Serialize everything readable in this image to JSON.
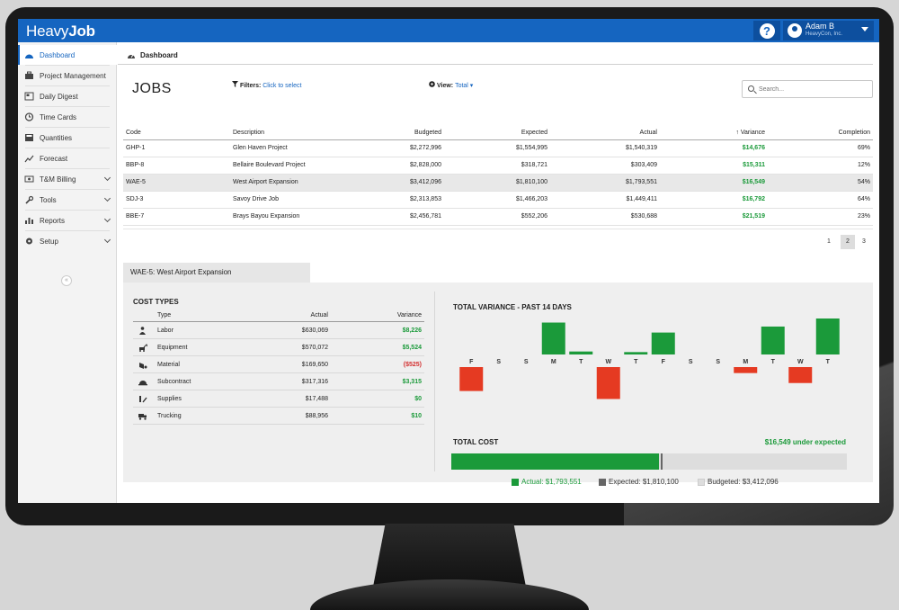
{
  "app": {
    "logo_light": "Heavy",
    "logo_bold": "Job",
    "help_label": "?",
    "user_name": "Adam B",
    "user_company": "HeavyCon, Inc."
  },
  "sidebar": {
    "items": [
      {
        "label": "Dashboard",
        "icon": "dashboard-icon",
        "active": true
      },
      {
        "label": "Project Management",
        "icon": "briefcase-icon"
      },
      {
        "label": "Daily Digest",
        "icon": "newspaper-icon"
      },
      {
        "label": "Time Cards",
        "icon": "clock-icon"
      },
      {
        "label": "Quantities",
        "icon": "calculator-icon"
      },
      {
        "label": "Forecast",
        "icon": "trend-line-icon"
      },
      {
        "label": "T&M Billing",
        "icon": "billing-icon",
        "expandable": true
      },
      {
        "label": "Tools",
        "icon": "wrench-icon",
        "expandable": true
      },
      {
        "label": "Reports",
        "icon": "bar-chart-icon",
        "expandable": true
      },
      {
        "label": "Setup",
        "icon": "gear-icon",
        "expandable": true
      }
    ],
    "collapse_label": "«"
  },
  "header": {
    "breadcrumb": "Dashboard",
    "title": "JOBS",
    "filters_label": "Filters:",
    "filters_link": "Click to select",
    "view_label": "View:",
    "view_value": "Total",
    "search_placeholder": "Search..."
  },
  "jobs_table": {
    "columns": [
      "Code",
      "Description",
      "Budgeted",
      "Expected",
      "Actual",
      "Variance",
      "Completion"
    ],
    "sorted_column": "Variance",
    "rows": [
      {
        "code": "GHP-1",
        "description": "Glen Haven Project",
        "budgeted": "$2,272,996",
        "expected": "$1,554,995",
        "actual": "$1,540,319",
        "variance": "$14,676",
        "completion": "69%"
      },
      {
        "code": "BBP-8",
        "description": "Bellaire Boulevard Project",
        "budgeted": "$2,828,000",
        "expected": "$318,721",
        "actual": "$303,409",
        "variance": "$15,311",
        "completion": "12%"
      },
      {
        "code": "WAE-5",
        "description": "West Airport Expansion",
        "budgeted": "$3,412,096",
        "expected": "$1,810,100",
        "actual": "$1,793,551",
        "variance": "$16,549",
        "completion": "54%",
        "selected": true
      },
      {
        "code": "SDJ-3",
        "description": "Savoy Drive Job",
        "budgeted": "$2,313,853",
        "expected": "$1,466,203",
        "actual": "$1,449,411",
        "variance": "$16,792",
        "completion": "64%"
      },
      {
        "code": "BBE-7",
        "description": "Brays Bayou Expansion",
        "budgeted": "$2,456,781",
        "expected": "$552,206",
        "actual": "$530,688",
        "variance": "$21,519",
        "completion": "23%"
      }
    ]
  },
  "pagination": {
    "pages": [
      "1",
      "2",
      "3"
    ],
    "current": "2"
  },
  "detail": {
    "tab_label": "WAE-5: West Airport Expansion",
    "cost_types": {
      "title": "COST TYPES",
      "columns": [
        "Type",
        "Actual",
        "Variance"
      ],
      "rows": [
        {
          "icon": "worker-icon",
          "type": "Labor",
          "actual": "$630,069",
          "variance": "$8,226",
          "status": "positive"
        },
        {
          "icon": "excavator-icon",
          "type": "Equipment",
          "actual": "$570,072",
          "variance": "$5,524",
          "status": "positive"
        },
        {
          "icon": "material-icon",
          "type": "Material",
          "actual": "$169,650",
          "variance": "($525)",
          "status": "negative"
        },
        {
          "icon": "hardhat-icon",
          "type": "Subcontract",
          "actual": "$317,316",
          "variance": "$3,315",
          "status": "positive"
        },
        {
          "icon": "supplies-icon",
          "type": "Supplies",
          "actual": "$17,488",
          "variance": "$0",
          "status": "positive"
        },
        {
          "icon": "truck-icon",
          "type": "Trucking",
          "actual": "$88,956",
          "variance": "$10",
          "status": "positive"
        }
      ]
    },
    "variance_chart_title": "TOTAL VARIANCE - PAST 14 DAYS",
    "total_cost": {
      "title": "TOTAL COST",
      "summary": "$16,549 under expected",
      "actual": 1793551,
      "expected": 1810100,
      "budgeted": 3412096,
      "legend": [
        {
          "label": "Actual:",
          "value": "$1,793,551"
        },
        {
          "label": "Expected:",
          "value": "$1,810,100"
        },
        {
          "label": "Budgeted:",
          "value": "$3,412,096"
        }
      ]
    }
  },
  "colors": {
    "brand_blue": "#1565c0",
    "positive_green": "#1b9a3a",
    "negative_red": "#e53a22",
    "expected_gray": "#666666",
    "budgeted_gray": "#dddddd"
  },
  "chart_data": {
    "type": "bar",
    "title": "TOTAL VARIANCE - PAST 14 DAYS",
    "categories": [
      "F",
      "S",
      "S",
      "M",
      "T",
      "W",
      "T",
      "F",
      "S",
      "S",
      "M",
      "T",
      "W",
      "T"
    ],
    "values": [
      -1200,
      0,
      0,
      1600,
      150,
      -1600,
      120,
      1100,
      0,
      0,
      -300,
      1400,
      -800,
      2300
    ],
    "xlabel": "",
    "ylabel": "",
    "grid": false,
    "colors": {
      "positive": "#1b9a3a",
      "negative": "#e53a22"
    }
  }
}
